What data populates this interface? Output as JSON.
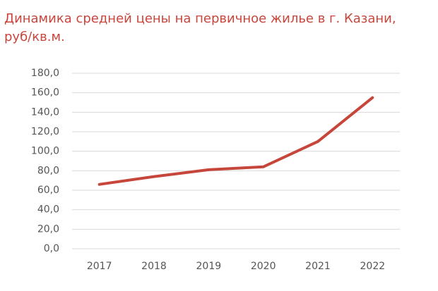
{
  "chart_data": {
    "type": "line",
    "title": "Динамика средней цены на первичное жилье в г. Казани, руб/кв.м.",
    "categories": [
      "2017",
      "2018",
      "2019",
      "2020",
      "2021",
      "2022"
    ],
    "values": [
      66,
      74,
      81,
      84,
      110,
      155
    ],
    "color": "#c7463b",
    "ylim": [
      0,
      180
    ],
    "yticks": [
      {
        "value": 0,
        "label": "0,0"
      },
      {
        "value": 20,
        "label": "20,0"
      },
      {
        "value": 40,
        "label": "40,0"
      },
      {
        "value": 60,
        "label": "60,0"
      },
      {
        "value": 80,
        "label": "80,0"
      },
      {
        "value": 100,
        "label": "100,0"
      },
      {
        "value": 120,
        "label": "120,0"
      },
      {
        "value": 140,
        "label": "140,0"
      },
      {
        "value": 160,
        "label": "160,0"
      },
      {
        "value": 180,
        "label": "180,0"
      }
    ],
    "grid": true
  }
}
